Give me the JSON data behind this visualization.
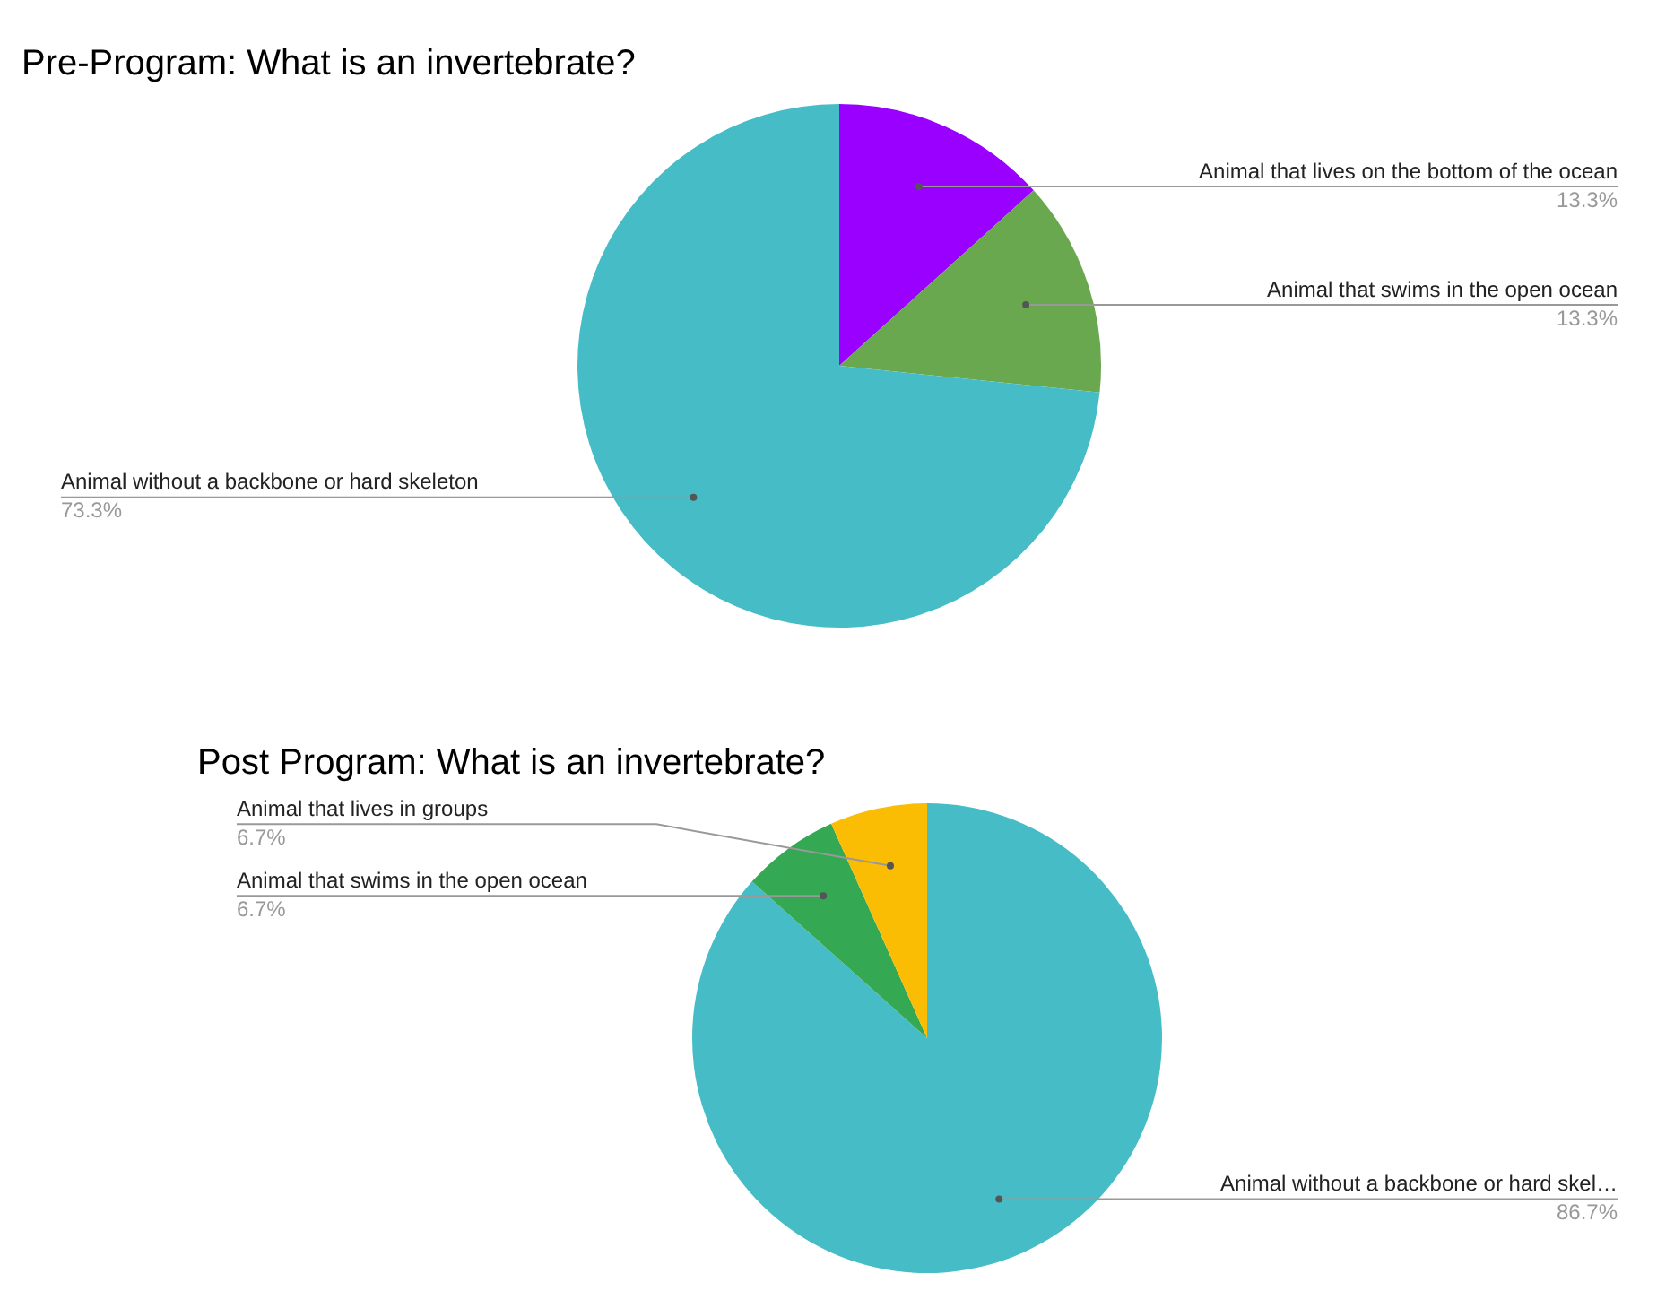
{
  "chart_data": [
    {
      "type": "pie",
      "title": "Pre-Program: What is an invertebrate?",
      "categories": [
        "Animal that lives on the bottom of the ocean",
        "Animal that swims in the open ocean",
        "Animal without a backbone or hard skeleton"
      ],
      "values": [
        13.3,
        13.3,
        73.3
      ],
      "value_labels": [
        "13.3%",
        "13.3%",
        "73.3%"
      ],
      "colors": [
        "#9900ff",
        "#6aa84f",
        "#46bdc6"
      ],
      "legend": false
    },
    {
      "type": "pie",
      "title": "Post Program: What is an invertebrate?",
      "categories": [
        "Animal without a backbone or hard skel…",
        "Animal that swims in the open ocean",
        "Animal that lives in groups"
      ],
      "values": [
        86.7,
        6.7,
        6.7
      ],
      "value_labels": [
        "86.7%",
        "6.7%",
        "6.7%"
      ],
      "colors": [
        "#46bdc6",
        "#34a853",
        "#fbbc04"
      ],
      "legend": false
    }
  ]
}
